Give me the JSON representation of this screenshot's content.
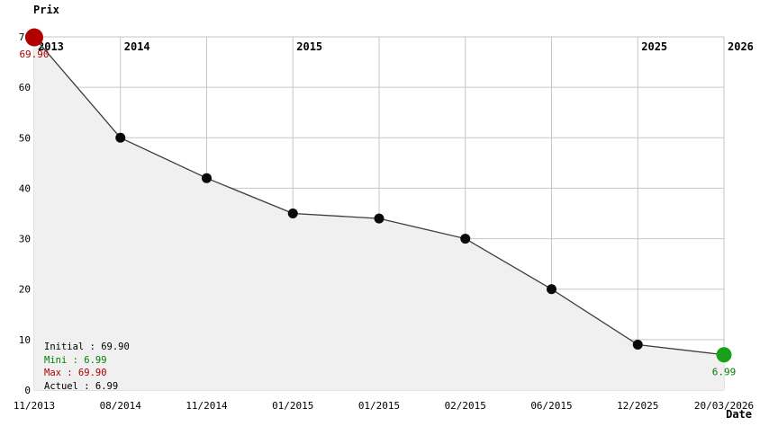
{
  "chart": {
    "y_axis_title": "Prix",
    "x_axis_title": "Date",
    "colors": {
      "grid": "#c6c6c6",
      "area_fill": "#f0f0f0",
      "line": "#3c3c3c",
      "point": "#0a0a0a",
      "point_first": "#b00000",
      "point_last": "#18a018",
      "label_min": "#008000",
      "label_max": "#b00000",
      "text": "#000000"
    }
  },
  "chart_data": {
    "type": "line",
    "title": "",
    "x": [
      "11/2013",
      "08/2014",
      "11/2014",
      "01/2015",
      "01/2015",
      "02/2015",
      "06/2015",
      "12/2025",
      "20/03/2026"
    ],
    "values": [
      69.9,
      50,
      42,
      35,
      34,
      30,
      20,
      9,
      6.99
    ],
    "ylabel": "Prix",
    "xlabel": "Date",
    "ylim": [
      0,
      70
    ],
    "y_ticks": [
      0,
      10,
      20,
      30,
      40,
      50,
      60,
      70
    ],
    "grid": true,
    "area": true,
    "legend_position": "bottom-left",
    "year_markers": [
      {
        "label": "2013",
        "index": 0
      },
      {
        "label": "2014",
        "index": 1
      },
      {
        "label": "2015",
        "index": 3
      },
      {
        "label": "2025",
        "index": 7
      },
      {
        "label": "2026",
        "index": 8
      }
    ],
    "point_labels": [
      {
        "index": 0,
        "text": "69.90",
        "color_key": "label_max"
      },
      {
        "index": 8,
        "text": "6.99",
        "color_key": "label_min"
      }
    ]
  },
  "legend": {
    "items": [
      {
        "text": "Initial : 69.90",
        "color": "#000000"
      },
      {
        "text": "Mini : 6.99",
        "color": "#008000"
      },
      {
        "text": "Max : 69.90",
        "color": "#b00000"
      },
      {
        "text": "Actuel : 6.99",
        "color": "#000000"
      }
    ]
  }
}
